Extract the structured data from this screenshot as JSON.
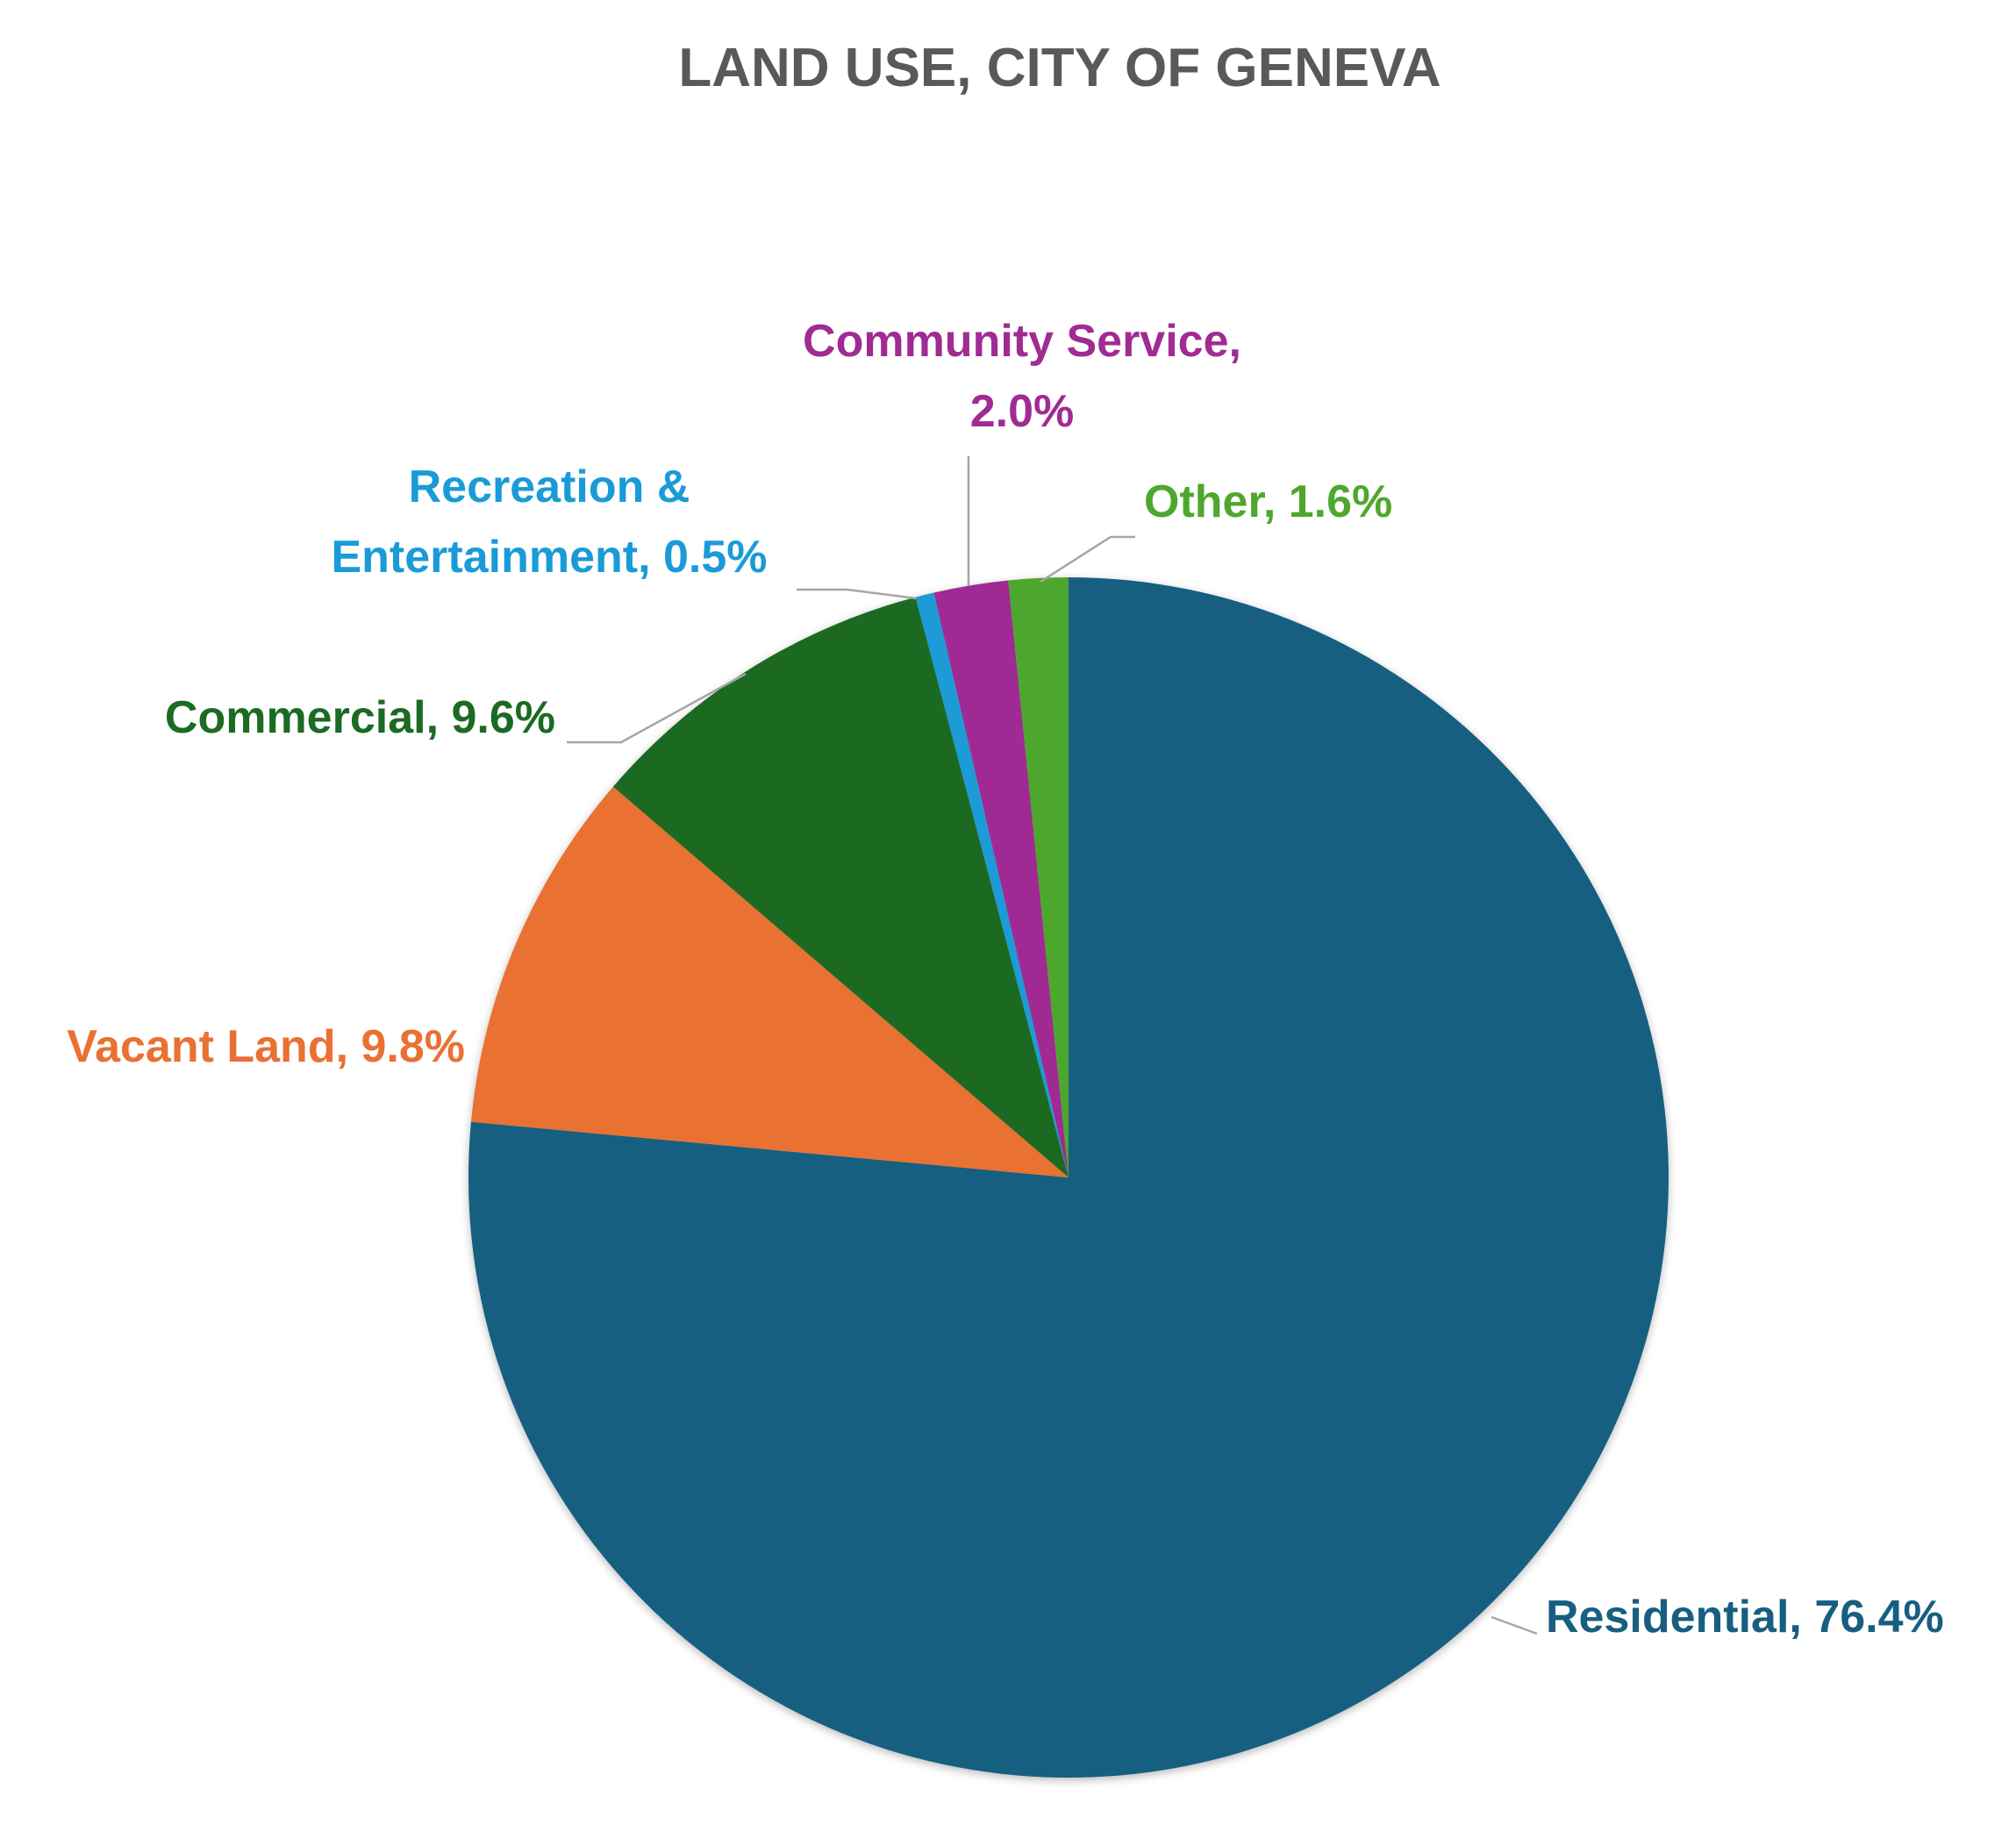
{
  "chart_data": {
    "type": "pie",
    "title": "LAND USE, CITY OF GENEVA",
    "start_angle_deg": 0,
    "direction": "clockwise",
    "legend": "none",
    "slices": [
      {
        "name": "Residential",
        "value": 76.4,
        "label_line1": "Residential, 76.4%",
        "label_line2": "",
        "color": "#175E81"
      },
      {
        "name": "Vacant Land",
        "value": 9.8,
        "label_line1": "Vacant Land, 9.8%",
        "label_line2": "",
        "color": "#E97132"
      },
      {
        "name": "Commercial",
        "value": 9.6,
        "label_line1": "Commercial, 9.6%",
        "label_line2": "",
        "color": "#1B6B23"
      },
      {
        "name": "Recreation & Entertainment",
        "value": 0.5,
        "label_line1": "Recreation &",
        "label_line2": "Entertainment, 0.5%",
        "color": "#1A9BD7"
      },
      {
        "name": "Community Service",
        "value": 2.0,
        "label_line1": "Community Service,",
        "label_line2": "2.0%",
        "color": "#A02B93"
      },
      {
        "name": "Other",
        "value": 1.6,
        "label_line1": "Other, 1.6%",
        "label_line2": "",
        "color": "#4EA72E"
      }
    ]
  }
}
